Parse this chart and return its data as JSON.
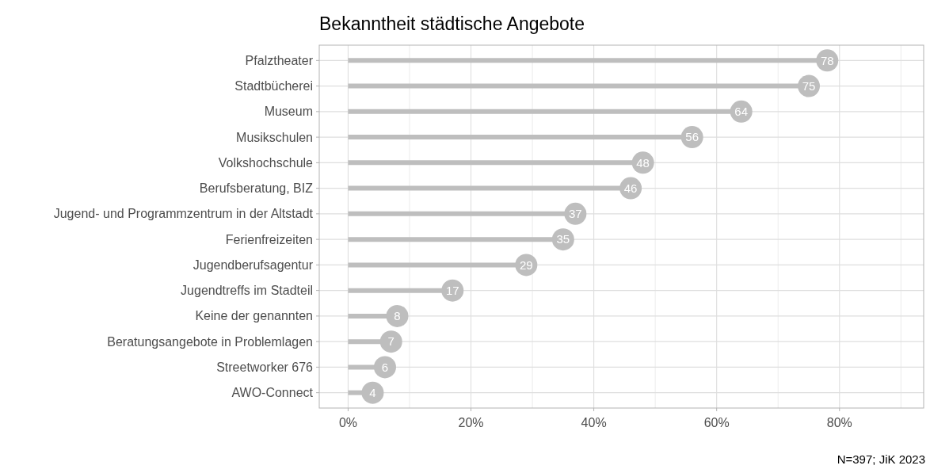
{
  "chart_data": {
    "type": "lollipop",
    "title": "Bekanntheit städtische Angebote",
    "orientation": "horizontal",
    "categories": [
      "Pfalztheater",
      "Stadtbücherei",
      "Museum",
      "Musikschulen",
      "Volkshochschule",
      "Berufsberatung, BIZ",
      "Jugend- und Programmzentrum in der Altstadt",
      "Ferienfreizeiten",
      "Jugendberufsagentur",
      "Jugendtreffs im Stadteil",
      "Keine der genannten",
      "Beratungsangebote in Problemlagen",
      "Streetworker 676",
      "AWO-Connect"
    ],
    "values": [
      78,
      75,
      64,
      56,
      48,
      46,
      37,
      35,
      29,
      17,
      8,
      7,
      6,
      4
    ],
    "color": "#bebebe",
    "data_labels": true,
    "grid": true,
    "marker": "circle",
    "xlim": [
      -4.7,
      93.7
    ],
    "xticks": [
      {
        "value": 0,
        "label": "0%"
      },
      {
        "value": 10,
        "label": null
      },
      {
        "value": 20,
        "label": "20%"
      },
      {
        "value": 30,
        "label": null
      },
      {
        "value": 40,
        "label": "40%"
      },
      {
        "value": 50,
        "label": null
      },
      {
        "value": 60,
        "label": "60%"
      },
      {
        "value": 70,
        "label": null
      },
      {
        "value": 80,
        "label": "80%"
      },
      {
        "value": 90,
        "label": null
      }
    ],
    "annotations": [
      "N=397; JiK 2023"
    ]
  }
}
